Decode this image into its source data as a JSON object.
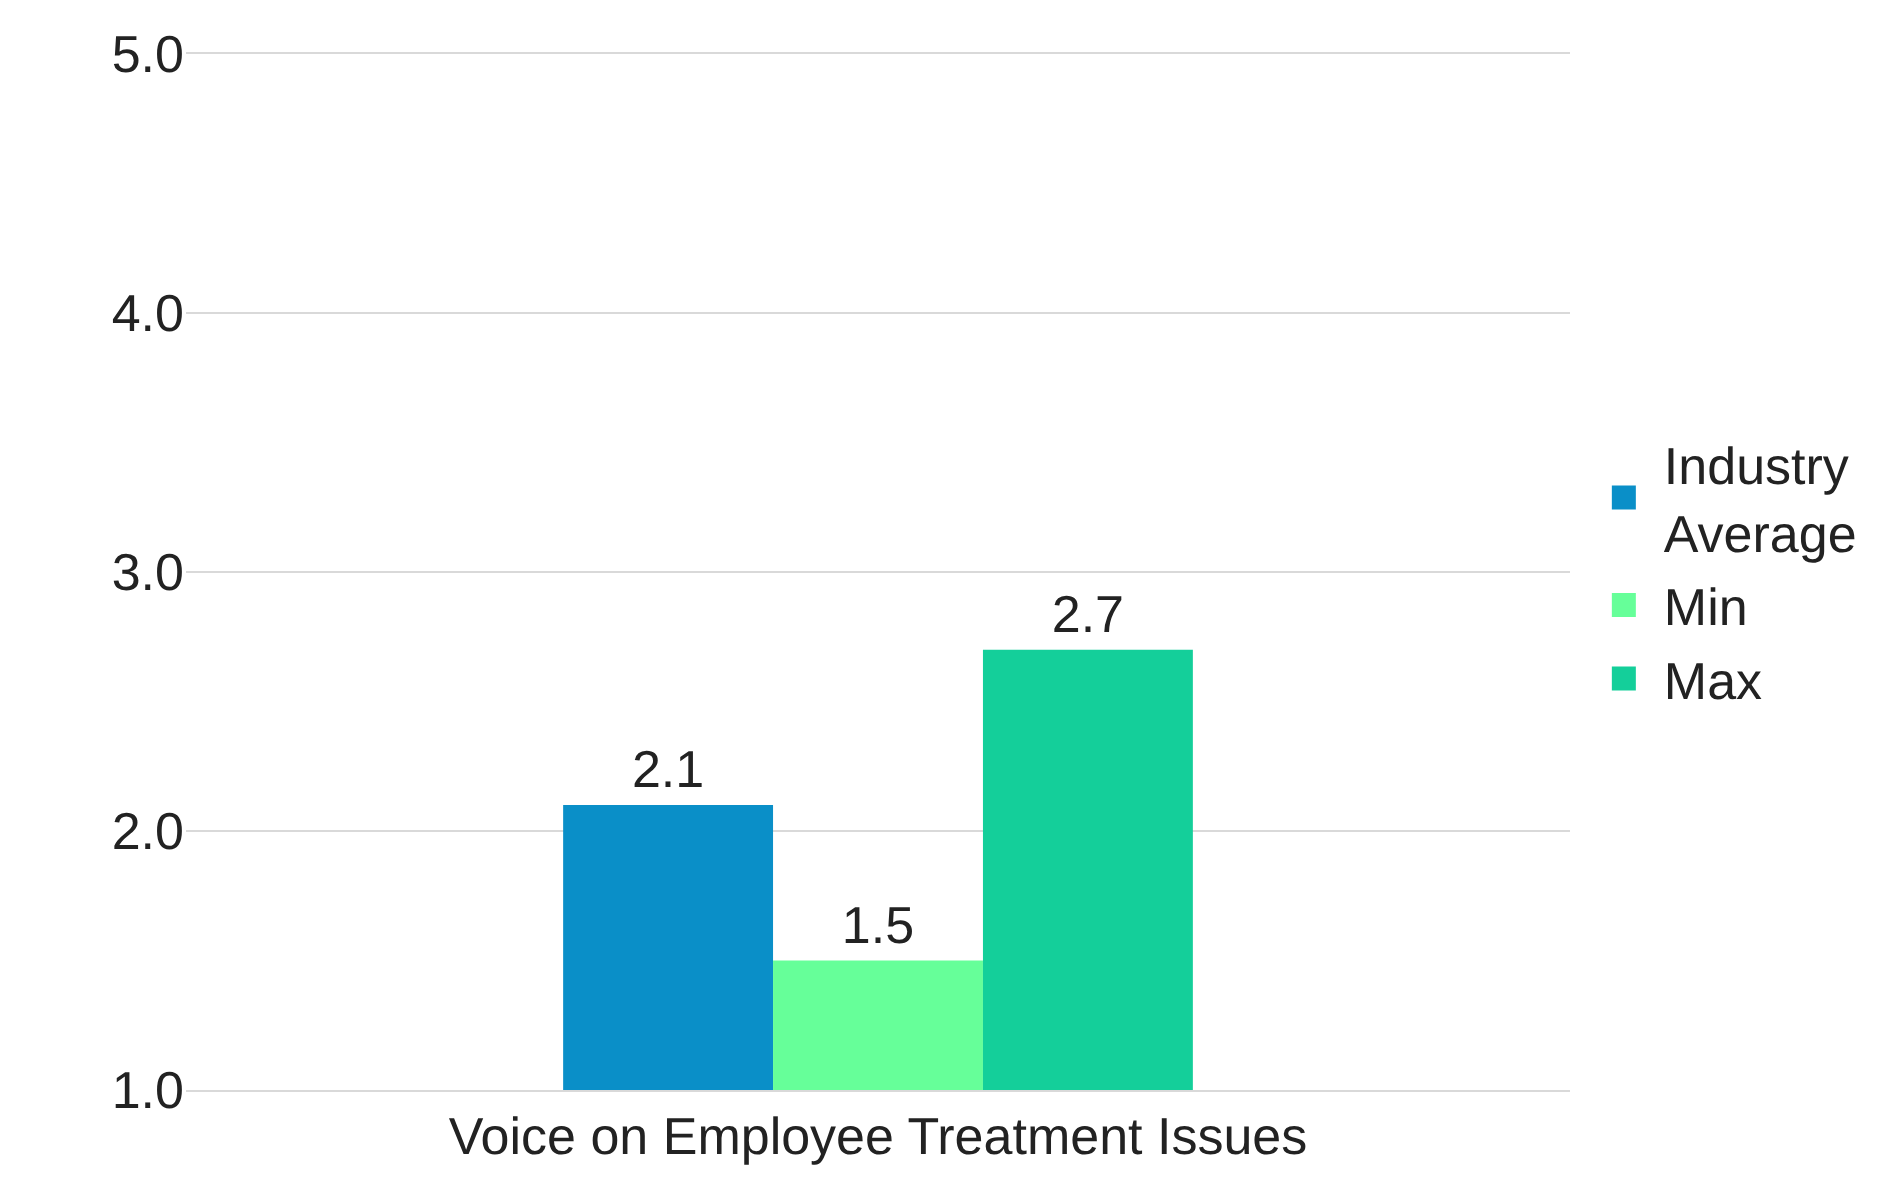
{
  "chart_data": {
    "type": "bar",
    "categories": [
      "Voice on Employee Treatment Issues"
    ],
    "series": [
      {
        "name": "Industry Average",
        "color": "#0a8fc8",
        "values": [
          2.1
        ]
      },
      {
        "name": "Min",
        "color": "#66ff99",
        "values": [
          1.5
        ]
      },
      {
        "name": "Max",
        "color": "#14cf9a",
        "values": [
          2.7
        ]
      }
    ],
    "ylim": [
      1.0,
      5.0
    ],
    "yticks": [
      {
        "value": 1,
        "label": "1.0"
      },
      {
        "value": 2,
        "label": "2.0"
      },
      {
        "value": 3,
        "label": "3.0"
      },
      {
        "value": 4,
        "label": "4.0"
      },
      {
        "value": 5,
        "label": "5.0"
      }
    ],
    "grid": "y",
    "legend": "right",
    "data_labels": true
  }
}
